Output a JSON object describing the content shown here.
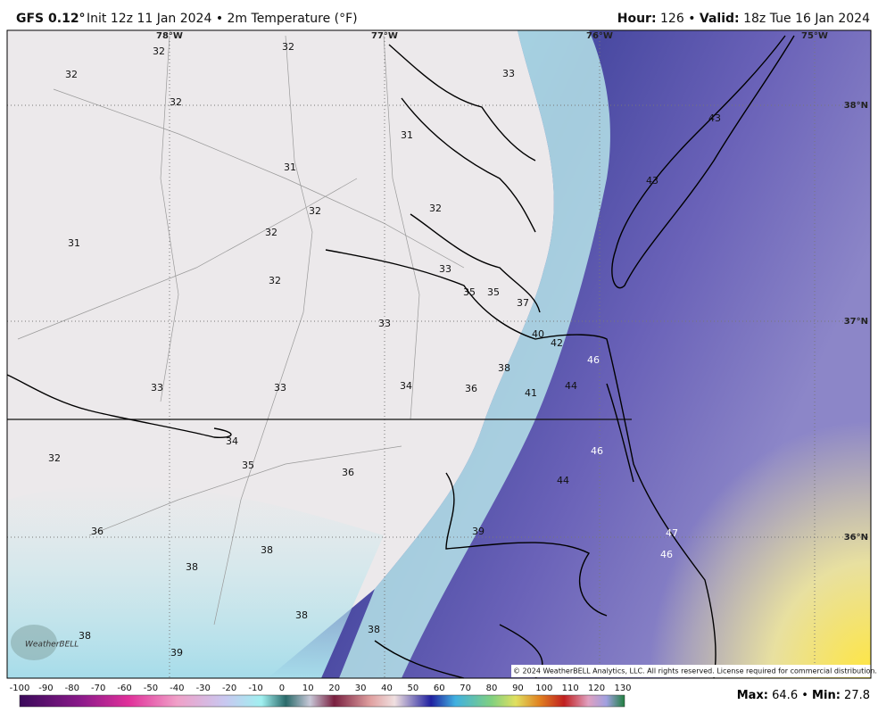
{
  "header": {
    "title": "GFS 0.12°",
    "subtitle": "Init 12z 11 Jan 2024 • 2m Temperature (°F)",
    "hour_label": "Hour:",
    "hour": 126,
    "separator": "•",
    "valid_label": "Valid:",
    "valid": "18z Tue 16 Jan 2024"
  },
  "map": {
    "longitudes": [
      "78°W",
      "77°W",
      "76°W",
      "75°W"
    ],
    "latitudes": [
      "38°N",
      "37°N",
      "36°N"
    ],
    "points": [
      32,
      32,
      32,
      32,
      33,
      31,
      43,
      31,
      43,
      32,
      32,
      32,
      31,
      33,
      35,
      35,
      32,
      37,
      33,
      40,
      42,
      46,
      38,
      33,
      33,
      34,
      36,
      41,
      44,
      34,
      35,
      36,
      46,
      44,
      32,
      36,
      39,
      47,
      38,
      38,
      46,
      38,
      38,
      38,
      39
    ],
    "copyright": "© 2024 WeatherBELL Analytics, LLC. All rights reserved. License required for commercial distribution.",
    "logo": "WeatherBELL"
  },
  "colorbar": {
    "ticks": [
      -100,
      -90,
      -80,
      -70,
      -60,
      -50,
      -40,
      -30,
      -20,
      -10,
      0,
      10,
      20,
      30,
      40,
      50,
      60,
      70,
      80,
      90,
      100,
      110,
      120,
      130
    ]
  },
  "footer": {
    "max_label": "Max:",
    "max": 64.6,
    "separator": "•",
    "min_label": "Min:",
    "min": 27.8
  }
}
